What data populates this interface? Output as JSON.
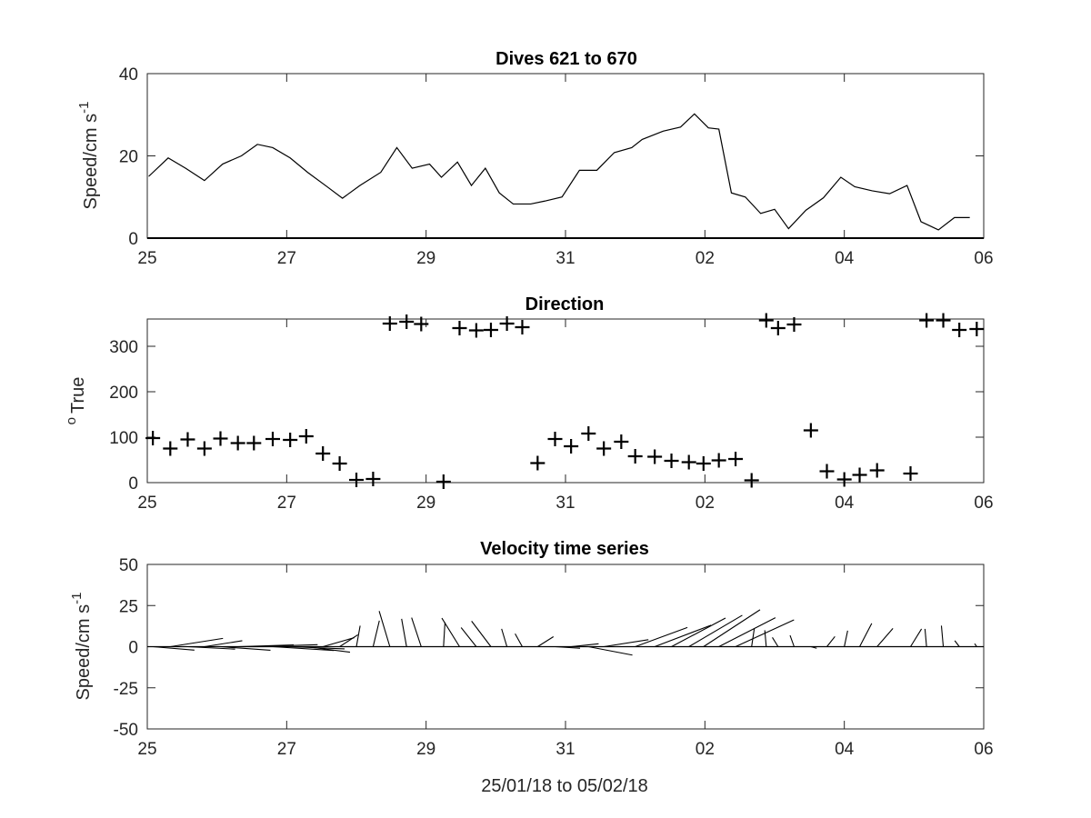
{
  "figure": {
    "xlabel": "25/01/18 to 05/02/18"
  },
  "chart_data": [
    {
      "type": "line",
      "title": "Dives 621 to 670",
      "ylabel_main": "Speed/cm s",
      "ylabel_sup": "-1",
      "xlim": [
        0,
        12
      ],
      "ylim": [
        0,
        40
      ],
      "yticks": [
        0,
        20,
        40
      ],
      "xticks": [
        0,
        2,
        4,
        6,
        8,
        10,
        12
      ],
      "xtick_labels": [
        "25",
        "27",
        "29",
        "31",
        "02",
        "04",
        "06"
      ],
      "x": [
        0.02,
        0.3,
        0.55,
        0.82,
        1.08,
        1.35,
        1.58,
        1.8,
        2.05,
        2.3,
        2.58,
        2.8,
        3.05,
        3.35,
        3.58,
        3.8,
        4.05,
        4.22,
        4.45,
        4.65,
        4.85,
        5.05,
        5.25,
        5.5,
        5.7,
        5.95,
        6.2,
        6.45,
        6.7,
        6.95,
        7.1,
        7.4,
        7.65,
        7.85,
        8.05,
        8.2,
        8.38,
        8.58,
        8.8,
        9.0,
        9.2,
        9.45,
        9.7,
        9.95,
        10.15,
        10.4,
        10.65,
        10.9,
        11.1,
        11.35,
        11.58,
        11.8
      ],
      "y": [
        15,
        19.5,
        17,
        14,
        18,
        20,
        22.8,
        22,
        19.5,
        16,
        12.5,
        9.7,
        12.8,
        16,
        22,
        17,
        18,
        14.8,
        18.5,
        12.8,
        17,
        11,
        8.3,
        8.3,
        9,
        10,
        16.5,
        16.5,
        20.8,
        22,
        24,
        26,
        27,
        30.2,
        26.8,
        26.5,
        11,
        10,
        6,
        7,
        2.3,
        6.8,
        9.8,
        14.8,
        12.5,
        11.5,
        10.8,
        12.8,
        4,
        2,
        5,
        5
      ]
    },
    {
      "type": "scatter",
      "title": "Direction",
      "ylabel_main": "True",
      "ylabel_sup": "o",
      "xlim": [
        0,
        12
      ],
      "ylim": [
        0,
        360
      ],
      "yticks": [
        0,
        100,
        200,
        300
      ],
      "xticks": [
        0,
        2,
        4,
        6,
        8,
        10,
        12
      ],
      "xtick_labels": [
        "25",
        "27",
        "29",
        "31",
        "02",
        "04",
        "06"
      ],
      "x": [
        0.08,
        0.33,
        0.58,
        0.82,
        1.05,
        1.3,
        1.53,
        1.8,
        2.05,
        2.28,
        2.52,
        2.76,
        3.0,
        3.24,
        3.48,
        3.72,
        3.93,
        4.25,
        4.48,
        4.72,
        4.93,
        5.16,
        5.38,
        5.6,
        5.85,
        6.08,
        6.33,
        6.55,
        6.8,
        7.0,
        7.28,
        7.52,
        7.77,
        7.98,
        8.2,
        8.44,
        8.67,
        8.88,
        9.05,
        9.28,
        9.52,
        9.75,
        10.0,
        10.22,
        10.47,
        10.95,
        11.18,
        11.42,
        11.65,
        11.9
      ],
      "y": [
        98,
        75,
        95,
        75,
        97,
        87,
        87,
        96,
        94,
        102,
        64,
        42,
        6,
        8,
        350,
        354,
        349,
        2,
        340,
        335,
        336,
        350,
        342,
        43,
        96,
        80,
        108,
        75,
        90,
        58,
        57,
        48,
        45,
        42,
        49,
        52,
        5,
        357,
        340,
        348,
        115,
        25,
        7,
        17,
        27,
        20,
        357,
        357,
        336,
        338
      ]
    },
    {
      "type": "line",
      "subtype": "stick-vector",
      "title": "Velocity time series",
      "ylabel_main": "Speed/cm s",
      "ylabel_sup": "-1",
      "xlim": [
        0,
        12
      ],
      "ylim": [
        -50,
        50
      ],
      "yticks": [
        -50,
        -25,
        0,
        25,
        50
      ],
      "xticks": [
        0,
        2,
        4,
        6,
        8,
        10,
        12
      ],
      "xtick_labels": [
        "25",
        "27",
        "29",
        "31",
        "02",
        "04",
        "06"
      ],
      "x": [
        0.08,
        0.33,
        0.58,
        0.82,
        1.05,
        1.3,
        1.53,
        1.8,
        2.05,
        2.28,
        2.52,
        2.76,
        3.0,
        3.24,
        3.48,
        3.72,
        3.93,
        4.25,
        4.48,
        4.72,
        4.93,
        5.16,
        5.38,
        5.6,
        5.85,
        6.08,
        6.33,
        6.55,
        6.8,
        7.0,
        7.28,
        7.52,
        7.77,
        7.98,
        8.2,
        8.44,
        8.67,
        8.88,
        9.05,
        9.28,
        9.52,
        9.75,
        10.0,
        10.22,
        10.47,
        10.95,
        11.18,
        11.42,
        11.65,
        11.9
      ],
      "speed": [
        15,
        19.5,
        17,
        14,
        18,
        20,
        22.8,
        22,
        19.5,
        16,
        12.5,
        9.7,
        12.8,
        16,
        22,
        17,
        18,
        14.8,
        18.5,
        12.8,
        17,
        11,
        8.3,
        8.3,
        9,
        10,
        16.5,
        16.5,
        20.8,
        22,
        24,
        26,
        27,
        30.2,
        26.8,
        26.5,
        11,
        10,
        6,
        7,
        2.3,
        6.8,
        9.8,
        14.8,
        12.5,
        11.5,
        10.8,
        12.8,
        4,
        2
      ],
      "direction_deg": [
        98,
        75,
        95,
        75,
        97,
        87,
        87,
        96,
        94,
        102,
        64,
        42,
        6,
        8,
        350,
        354,
        349,
        2,
        340,
        335,
        336,
        350,
        342,
        43,
        96,
        80,
        108,
        75,
        90,
        58,
        57,
        48,
        45,
        42,
        49,
        52,
        5,
        357,
        340,
        348,
        115,
        25,
        7,
        17,
        27,
        20,
        357,
        357,
        336,
        338
      ]
    }
  ]
}
